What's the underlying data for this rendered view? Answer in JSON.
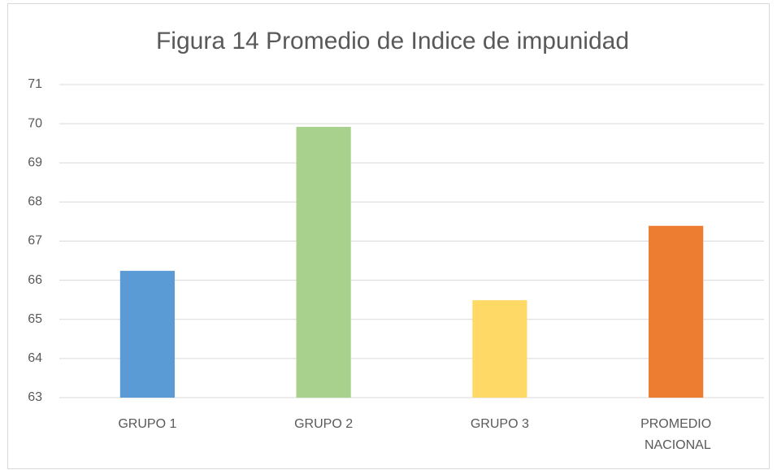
{
  "chart_data": {
    "type": "bar",
    "title": "Figura 14 Promedio de Indice de impunidad",
    "categories": [
      "GRUPO 1",
      "GRUPO 2",
      "GRUPO 3",
      "PROMEDIO NACIONAL"
    ],
    "values": [
      66.24,
      69.92,
      65.49,
      67.39
    ],
    "colors": [
      "#5b9bd5",
      "#a9d18e",
      "#ffd966",
      "#ed7d31"
    ],
    "ylim": [
      63,
      71
    ],
    "yticks": [
      63,
      64,
      65,
      66,
      67,
      68,
      69,
      70,
      71
    ],
    "grid": true
  }
}
